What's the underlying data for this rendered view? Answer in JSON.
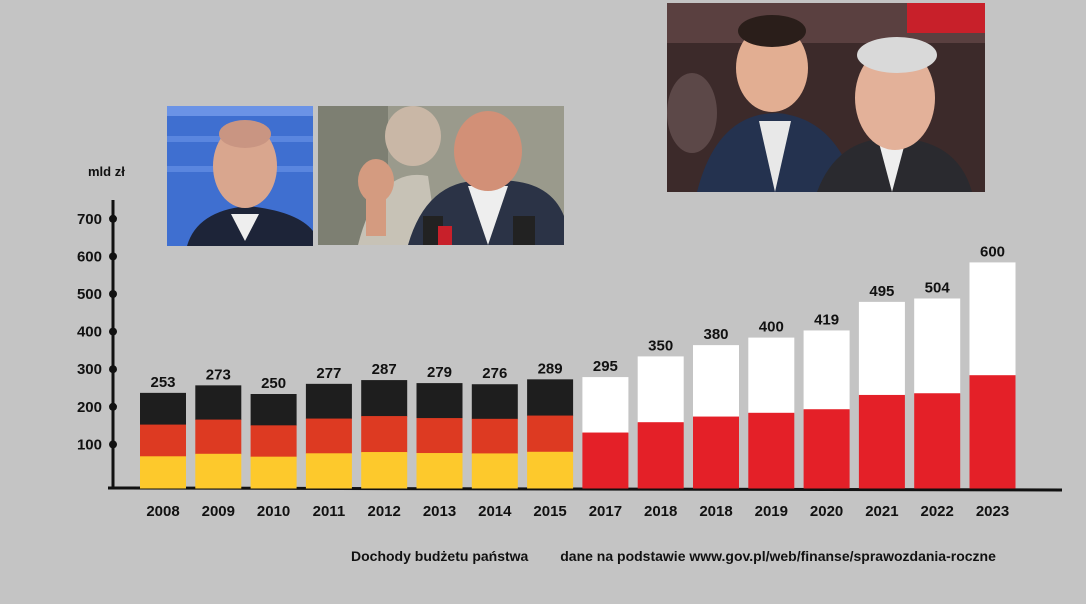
{
  "chart_data": {
    "type": "bar",
    "ylabel": "mld zł",
    "yticks": [
      100,
      200,
      300,
      400,
      500,
      600,
      700
    ],
    "ylim": [
      0,
      720
    ],
    "categories": [
      "2008",
      "2009",
      "2010",
      "2011",
      "2012",
      "2013",
      "2014",
      "2015",
      "2017",
      "2018",
      "2018",
      "2019",
      "2020",
      "2021",
      "2022",
      "2023"
    ],
    "values": [
      253,
      273,
      250,
      277,
      287,
      279,
      276,
      289,
      295,
      350,
      380,
      400,
      419,
      495,
      504,
      600
    ],
    "annotations": [
      "Dochody budżetu państwa",
      "dane na podstawie www.gov.pl/web/finanse/sprawozdania-roczne"
    ],
    "colors": {
      "german_black": "#1e1e1e",
      "german_red": "#dd3a22",
      "german_gold": "#fdc92c",
      "polish_white": "#ffffff",
      "polish_red": "#e42028"
    }
  },
  "photos": [
    {
      "name": "photo-man-bald-suit"
    },
    {
      "name": "photo-man-speaking-gesture"
    },
    {
      "name": "photo-two-men-audience"
    }
  ]
}
